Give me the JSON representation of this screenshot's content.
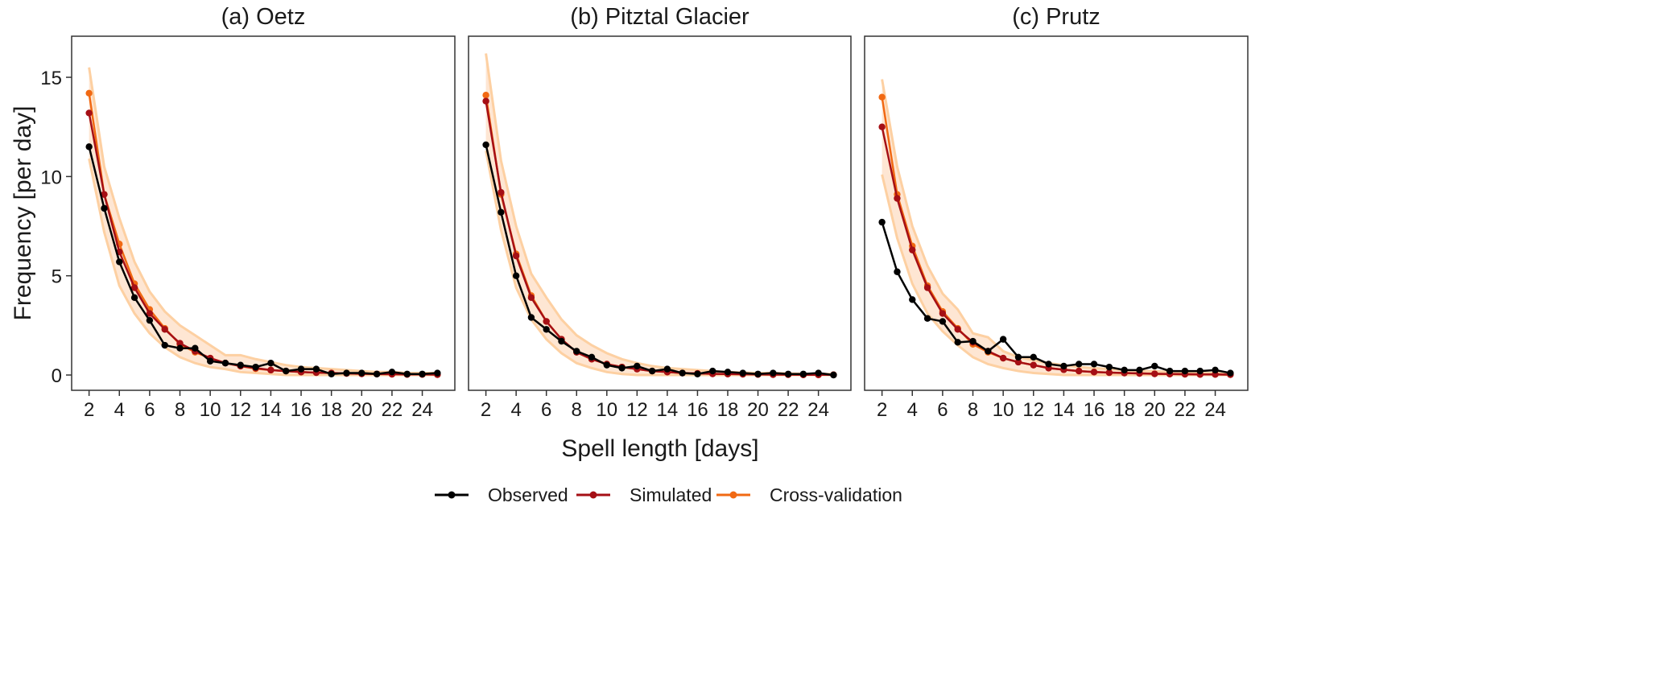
{
  "chart_data": {
    "type": "line",
    "ylabel": "Frequency [per day]",
    "xlabel": "Spell length [days]",
    "xlim": [
      0.85,
      26.15
    ],
    "ylim": [
      -0.77,
      17.07
    ],
    "xticks": [
      2,
      4,
      6,
      8,
      10,
      12,
      14,
      16,
      18,
      20,
      22,
      24
    ],
    "yticks": [
      0,
      5,
      10,
      15
    ],
    "legend_position": "bottom",
    "legend": [
      {
        "name": "Observed",
        "color": "#000000"
      },
      {
        "name": "Simulated",
        "color": "#a50f15"
      },
      {
        "name": "Cross-validation",
        "color": "#f16913"
      }
    ],
    "band_color": "#fdd0a2",
    "x": [
      2,
      3,
      4,
      5,
      6,
      7,
      8,
      9,
      10,
      11,
      12,
      13,
      14,
      15,
      16,
      17,
      18,
      19,
      20,
      21,
      22,
      23,
      24,
      25
    ],
    "panels": [
      {
        "title": "(a)  Oetz",
        "observed": [
          11.5,
          8.4,
          5.7,
          3.9,
          2.75,
          1.5,
          1.35,
          1.35,
          0.7,
          0.6,
          0.5,
          0.4,
          0.6,
          0.2,
          0.3,
          0.3,
          0.05,
          0.1,
          0.1,
          0.05,
          0.15,
          0.05,
          0.05,
          0.1
        ],
        "simulated": [
          13.2,
          9.1,
          6.2,
          4.4,
          3.1,
          2.3,
          1.6,
          1.2,
          0.85,
          0.6,
          0.45,
          0.35,
          0.25,
          0.2,
          0.15,
          0.12,
          0.1,
          0.08,
          0.06,
          0.05,
          0.04,
          0.03,
          0.03,
          0.02
        ],
        "cross_validation": [
          14.2,
          9.1,
          6.6,
          4.6,
          3.3,
          2.35,
          1.55,
          1.15,
          0.85,
          0.6,
          0.45,
          0.32,
          0.25,
          0.2,
          0.15,
          0.12,
          0.1,
          0.08,
          0.06,
          0.05,
          0.04,
          0.03,
          0.03,
          0.02
        ],
        "band_upper": [
          15.5,
          10.5,
          7.9,
          5.7,
          4.2,
          3.2,
          2.5,
          2.0,
          1.5,
          1.0,
          1.0,
          0.8,
          0.65,
          0.5,
          0.4,
          0.35,
          0.3,
          0.25,
          0.2,
          0.15,
          0.15,
          0.1,
          0.1,
          0.1
        ],
        "band_lower": [
          10.9,
          7.2,
          4.5,
          3.1,
          2.1,
          1.4,
          0.9,
          0.6,
          0.4,
          0.3,
          0.15,
          0.1,
          0.05,
          0,
          0,
          0,
          0,
          0,
          0,
          0,
          0,
          0,
          0,
          0
        ]
      },
      {
        "title": "(b)  Pitztal Glacier",
        "observed": [
          11.6,
          8.2,
          5.0,
          2.9,
          2.3,
          1.7,
          1.2,
          0.9,
          0.5,
          0.35,
          0.45,
          0.2,
          0.3,
          0.1,
          0.05,
          0.2,
          0.15,
          0.1,
          0.05,
          0.1,
          0.05,
          0.05,
          0.1,
          0.0
        ],
        "simulated": [
          13.8,
          9.2,
          6.0,
          3.9,
          2.7,
          1.8,
          1.15,
          0.8,
          0.55,
          0.4,
          0.3,
          0.2,
          0.15,
          0.1,
          0.08,
          0.06,
          0.05,
          0.04,
          0.03,
          0.02,
          0.02,
          0.01,
          0.01,
          0.01
        ],
        "cross_validation": [
          14.1,
          9.1,
          6.1,
          4.0,
          2.7,
          1.8,
          1.15,
          0.8,
          0.55,
          0.4,
          0.3,
          0.2,
          0.15,
          0.1,
          0.08,
          0.06,
          0.05,
          0.04,
          0.03,
          0.02,
          0.02,
          0.01,
          0.01,
          0.01
        ],
        "band_upper": [
          16.2,
          10.8,
          7.5,
          5.1,
          3.9,
          2.8,
          2.0,
          1.5,
          1.1,
          0.8,
          0.6,
          0.45,
          0.35,
          0.3,
          0.25,
          0.2,
          0.15,
          0.12,
          0.1,
          0.1,
          0.08,
          0.06,
          0.05,
          0.05
        ],
        "band_lower": [
          11.3,
          7.3,
          4.4,
          2.8,
          1.8,
          1.1,
          0.6,
          0.35,
          0.15,
          0.05,
          0,
          0,
          0,
          0,
          0,
          0,
          0,
          0,
          0,
          0,
          0,
          0,
          0,
          0
        ]
      },
      {
        "title": "(c)  Prutz",
        "observed": [
          7.7,
          5.2,
          3.8,
          2.85,
          2.7,
          1.65,
          1.7,
          1.2,
          1.8,
          0.9,
          0.9,
          0.55,
          0.45,
          0.55,
          0.55,
          0.4,
          0.25,
          0.25,
          0.45,
          0.2,
          0.2,
          0.2,
          0.25,
          0.1
        ],
        "simulated": [
          12.5,
          8.9,
          6.3,
          4.4,
          3.1,
          2.3,
          1.65,
          1.2,
          0.85,
          0.65,
          0.5,
          0.35,
          0.27,
          0.2,
          0.15,
          0.12,
          0.1,
          0.08,
          0.06,
          0.05,
          0.04,
          0.03,
          0.03,
          0.02
        ],
        "cross_validation": [
          14.0,
          9.1,
          6.5,
          4.5,
          3.2,
          2.35,
          1.55,
          1.15,
          0.85,
          0.65,
          0.5,
          0.35,
          0.27,
          0.2,
          0.15,
          0.12,
          0.1,
          0.08,
          0.06,
          0.05,
          0.04,
          0.03,
          0.03,
          0.02
        ],
        "band_upper": [
          14.9,
          10.5,
          7.5,
          5.5,
          4.1,
          3.3,
          2.1,
          1.9,
          1.2,
          0.9,
          0.75,
          0.6,
          0.5,
          0.4,
          0.35,
          0.3,
          0.25,
          0.2,
          0.2,
          0.15,
          0.15,
          0.1,
          0.1,
          0.1
        ],
        "band_lower": [
          10.1,
          6.9,
          4.6,
          3.1,
          2.2,
          1.5,
          0.9,
          0.55,
          0.35,
          0.2,
          0.1,
          0.05,
          0,
          0,
          0,
          0,
          0,
          0,
          0,
          0,
          0,
          0,
          0,
          0
        ]
      }
    ]
  }
}
